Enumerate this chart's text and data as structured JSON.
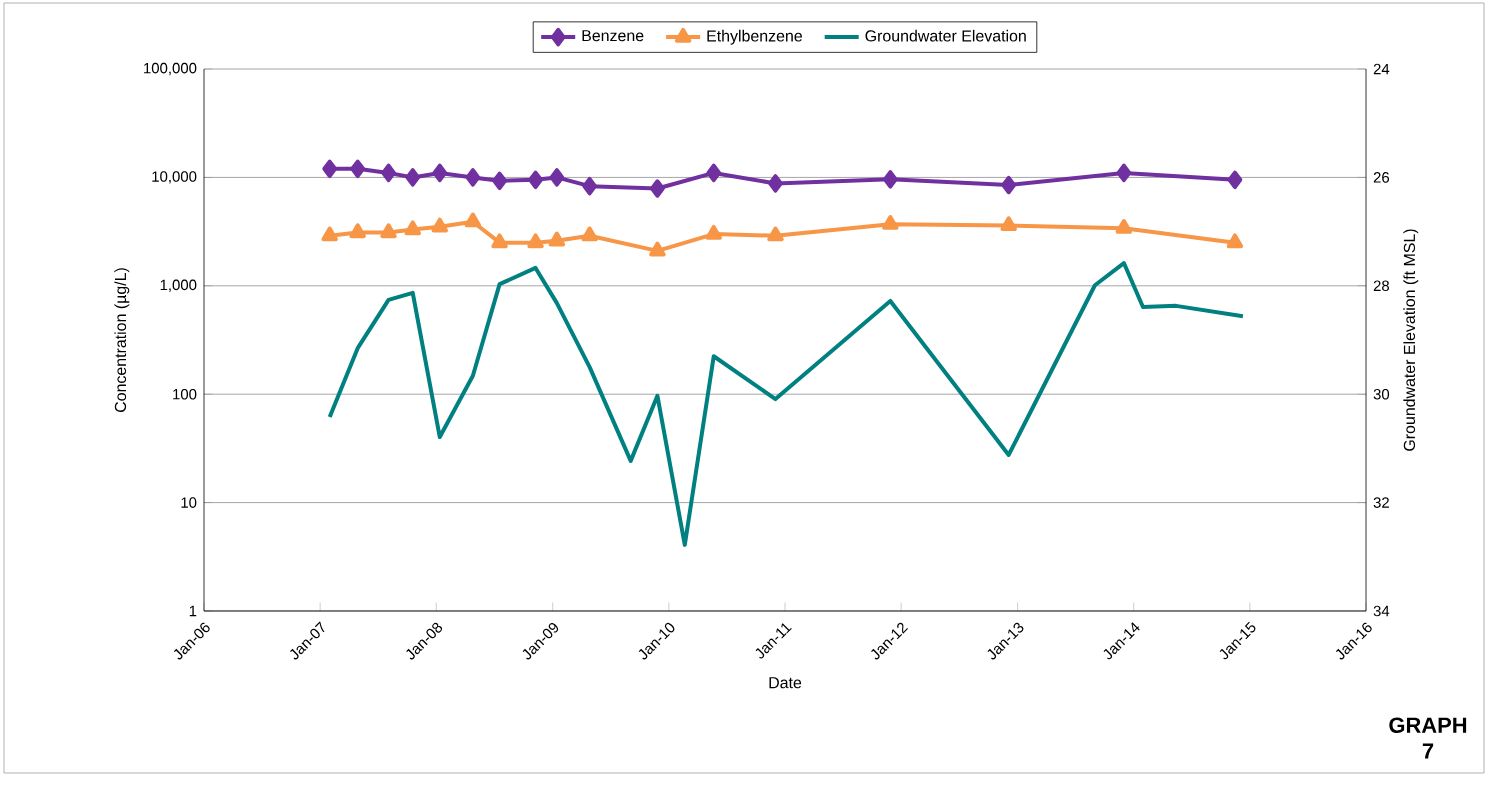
{
  "chart_data": {
    "type": "line",
    "xlabel": "Date",
    "ylabel": "Concentration (µg/L)",
    "y2label": "Groundwater Elevation (ft MSL)",
    "annotations": [
      "GRAPH 7"
    ],
    "log": "y",
    "grid": "y",
    "legend": "top",
    "xlim": [
      "2006-01-01",
      "2016-01-01"
    ],
    "xticks": [
      {
        "value": "2006-01-01",
        "label": "Jan-06"
      },
      {
        "value": "2007-01-01",
        "label": "Jan-07"
      },
      {
        "value": "2008-01-01",
        "label": "Jan-08"
      },
      {
        "value": "2009-01-01",
        "label": "Jan-09"
      },
      {
        "value": "2010-01-01",
        "label": "Jan-10"
      },
      {
        "value": "2011-01-01",
        "label": "Jan-11"
      },
      {
        "value": "2012-01-01",
        "label": "Jan-12"
      },
      {
        "value": "2013-01-01",
        "label": "Jan-13"
      },
      {
        "value": "2014-01-01",
        "label": "Jan-14"
      },
      {
        "value": "2015-01-01",
        "label": "Jan-15"
      },
      {
        "value": "2016-01-01",
        "label": "Jan-16"
      }
    ],
    "ylim": [
      1,
      100000
    ],
    "yticks": [
      1,
      10,
      100,
      {
        "value": 1000,
        "label": "1,000"
      },
      {
        "value": 10000,
        "label": "10,000"
      },
      {
        "value": 100000,
        "label": "100,000"
      }
    ],
    "y2lim": [
      34,
      24
    ],
    "y2ticks": [
      24,
      26,
      28,
      30,
      32,
      34
    ],
    "series": [
      {
        "name": "Benzene",
        "color": "#7030a0",
        "marker": "diamond",
        "x": [
          "2007-01-31",
          "2007-04-29",
          "2007-08-04",
          "2007-10-19",
          "2008-01-12",
          "2008-04-25",
          "2008-07-18",
          "2008-11-08",
          "2009-01-14",
          "2009-04-27",
          "2009-11-26",
          "2010-05-22",
          "2010-12-02",
          "2011-11-28",
          "2012-12-04",
          "2013-12-01",
          "2014-11-15"
        ],
        "values": [
          12000,
          12000,
          11000,
          10000,
          11000,
          10000,
          9300,
          9500,
          10000,
          8300,
          7900,
          11000,
          8800,
          9600,
          8500,
          11000,
          9500
        ]
      },
      {
        "name": "Ethylbenzene",
        "color": "#f79646",
        "marker": "triangle",
        "x": [
          "2007-01-31",
          "2007-04-29",
          "2007-08-04",
          "2007-10-19",
          "2008-01-12",
          "2008-04-25",
          "2008-07-18",
          "2008-11-08",
          "2009-01-14",
          "2009-04-27",
          "2009-11-26",
          "2010-05-22",
          "2010-12-02",
          "2011-11-28",
          "2012-12-04",
          "2013-12-01",
          "2014-11-15"
        ],
        "values": [
          2900,
          3100,
          3100,
          3300,
          3500,
          3900,
          2500,
          2500,
          2600,
          2900,
          2100,
          3000,
          2900,
          3700,
          3600,
          3400,
          2500
        ]
      },
      {
        "name": "Groundwater Elevation",
        "color": "#008080",
        "marker": "none",
        "axis": "y2",
        "x": [
          "2007-01-31",
          "2007-04-29",
          "2007-08-04",
          "2007-10-19",
          "2008-01-12",
          "2008-04-25",
          "2008-07-18",
          "2008-11-08",
          "2009-01-14",
          "2009-04-27",
          "2009-09-03",
          "2009-11-26",
          "2010-02-20",
          "2010-05-22",
          "2010-12-02",
          "2011-11-28",
          "2012-12-04",
          "2013-09-01",
          "2013-12-01",
          "2014-01-30",
          "2014-05-14",
          "2014-12-10"
        ],
        "values": [
          30.42,
          29.15,
          28.26,
          28.13,
          30.79,
          29.66,
          27.97,
          27.67,
          28.32,
          29.5,
          31.23,
          30.03,
          32.78,
          29.3,
          30.09,
          28.28,
          31.12,
          27.99,
          27.58,
          28.39,
          28.37,
          28.56
        ]
      }
    ]
  }
}
